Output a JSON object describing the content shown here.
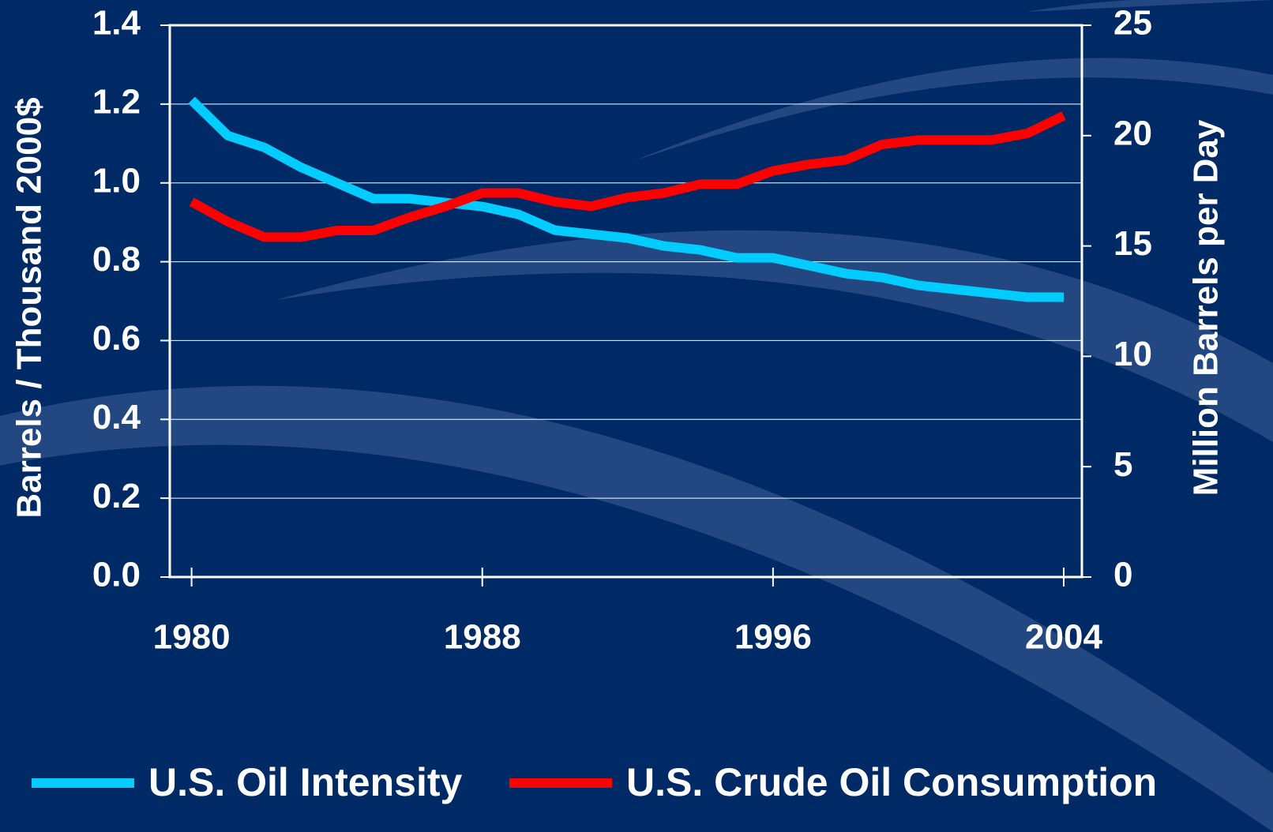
{
  "chart_data": {
    "type": "line",
    "x": [
      1980,
      1981,
      1982,
      1983,
      1984,
      1985,
      1986,
      1987,
      1988,
      1989,
      1990,
      1991,
      1992,
      1993,
      1994,
      1995,
      1996,
      1997,
      1998,
      1999,
      2000,
      2001,
      2002,
      2003,
      2004
    ],
    "xlim": [
      1979.4,
      2004.5
    ],
    "xticks": [
      1980,
      1988,
      1996,
      2004
    ],
    "ylim": [
      0,
      1.4
    ],
    "yticks": [
      {
        "value": 0,
        "label": "0.0"
      },
      {
        "value": 0.2,
        "label": "0.2"
      },
      {
        "value": 0.4,
        "label": "0.4"
      },
      {
        "value": 0.6,
        "label": "0.6"
      },
      {
        "value": 0.8,
        "label": "0.8"
      },
      {
        "value": 1,
        "label": "1.0"
      },
      {
        "value": 1.2,
        "label": "1.2"
      },
      {
        "value": 1.4,
        "label": "1.4"
      }
    ],
    "y2lim": [
      0,
      25
    ],
    "y2ticks": [
      0,
      5,
      10,
      15,
      20,
      25
    ],
    "ylabel": "Barrels / Thousand 2000$",
    "y2label": "Million Barrels per Day",
    "grid": true,
    "legend": "bottom",
    "series": [
      {
        "name": "U.S. Oil Intensity",
        "color": "#00ccff",
        "values": [
          1.21,
          1.12,
          1.09,
          1.04,
          1.0,
          0.96,
          0.96,
          0.95,
          0.94,
          0.92,
          0.88,
          0.87,
          0.86,
          0.84,
          0.83,
          0.81,
          0.81,
          0.79,
          0.77,
          0.76,
          0.74,
          0.73,
          0.72,
          0.71,
          0.71
        ]
      },
      {
        "name": "U.S. Crude Oil Consumption",
        "color": "#ff0000",
        "axis": "y2",
        "values": [
          17.0,
          16.1,
          15.4,
          15.4,
          15.7,
          15.7,
          16.3,
          16.8,
          17.4,
          17.4,
          17.0,
          16.8,
          17.2,
          17.4,
          17.8,
          17.8,
          18.4,
          18.7,
          18.9,
          19.6,
          19.8,
          19.8,
          19.8,
          20.1,
          20.9
        ]
      }
    ]
  }
}
